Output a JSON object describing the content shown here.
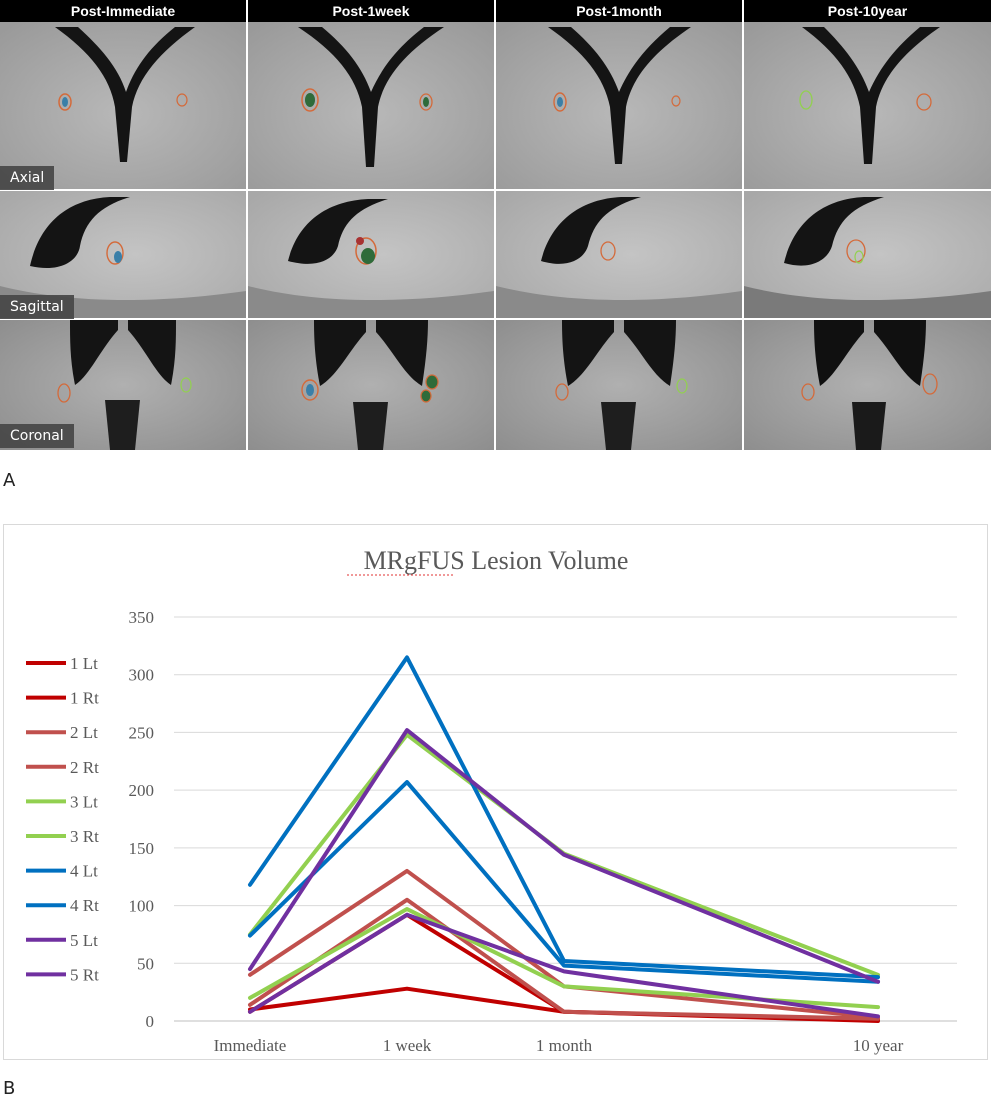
{
  "panel_a": {
    "label": "A",
    "columns": [
      "Post-Immediate",
      "Post-1week",
      "Post-1month",
      "Post-10year"
    ],
    "rows": [
      "Axial",
      "Sagittal",
      "Coronal"
    ]
  },
  "panel_b": {
    "label": "B"
  },
  "chart_data": {
    "type": "line",
    "title": "MRgFUS Lesion Volume",
    "categories": [
      "Immediate",
      "1 week",
      "1 month",
      "10 year"
    ],
    "x_positions": [
      0,
      1,
      2,
      4
    ],
    "ylim": [
      0,
      350
    ],
    "yticks": [
      "0",
      "50",
      "100",
      "150",
      "200",
      "250",
      "300",
      "350"
    ],
    "grid": true,
    "legend_position": "left",
    "series": [
      {
        "name": "1 Lt",
        "color": "#c00000",
        "values": [
          8,
          92,
          8,
          0
        ]
      },
      {
        "name": "1 Rt",
        "color": "#c00000",
        "values": [
          10,
          28,
          8,
          1
        ]
      },
      {
        "name": "2 Lt",
        "color": "#c0504d",
        "values": [
          40,
          130,
          30,
          3
        ]
      },
      {
        "name": "2 Rt",
        "color": "#c0504d",
        "values": [
          14,
          105,
          8,
          2
        ]
      },
      {
        "name": "3 Lt",
        "color": "#92d050",
        "values": [
          75,
          248,
          145,
          40
        ]
      },
      {
        "name": "3 Rt",
        "color": "#92d050",
        "values": [
          20,
          97,
          30,
          12
        ]
      },
      {
        "name": "4 Lt",
        "color": "#0070c0",
        "values": [
          118,
          315,
          52,
          38
        ]
      },
      {
        "name": "4 Rt",
        "color": "#0070c0",
        "values": [
          74,
          207,
          48,
          34
        ]
      },
      {
        "name": "5 Lt",
        "color": "#7030a0",
        "values": [
          45,
          252,
          144,
          34
        ]
      },
      {
        "name": "5 Rt",
        "color": "#7030a0",
        "values": [
          8,
          92,
          43,
          4
        ]
      }
    ]
  }
}
